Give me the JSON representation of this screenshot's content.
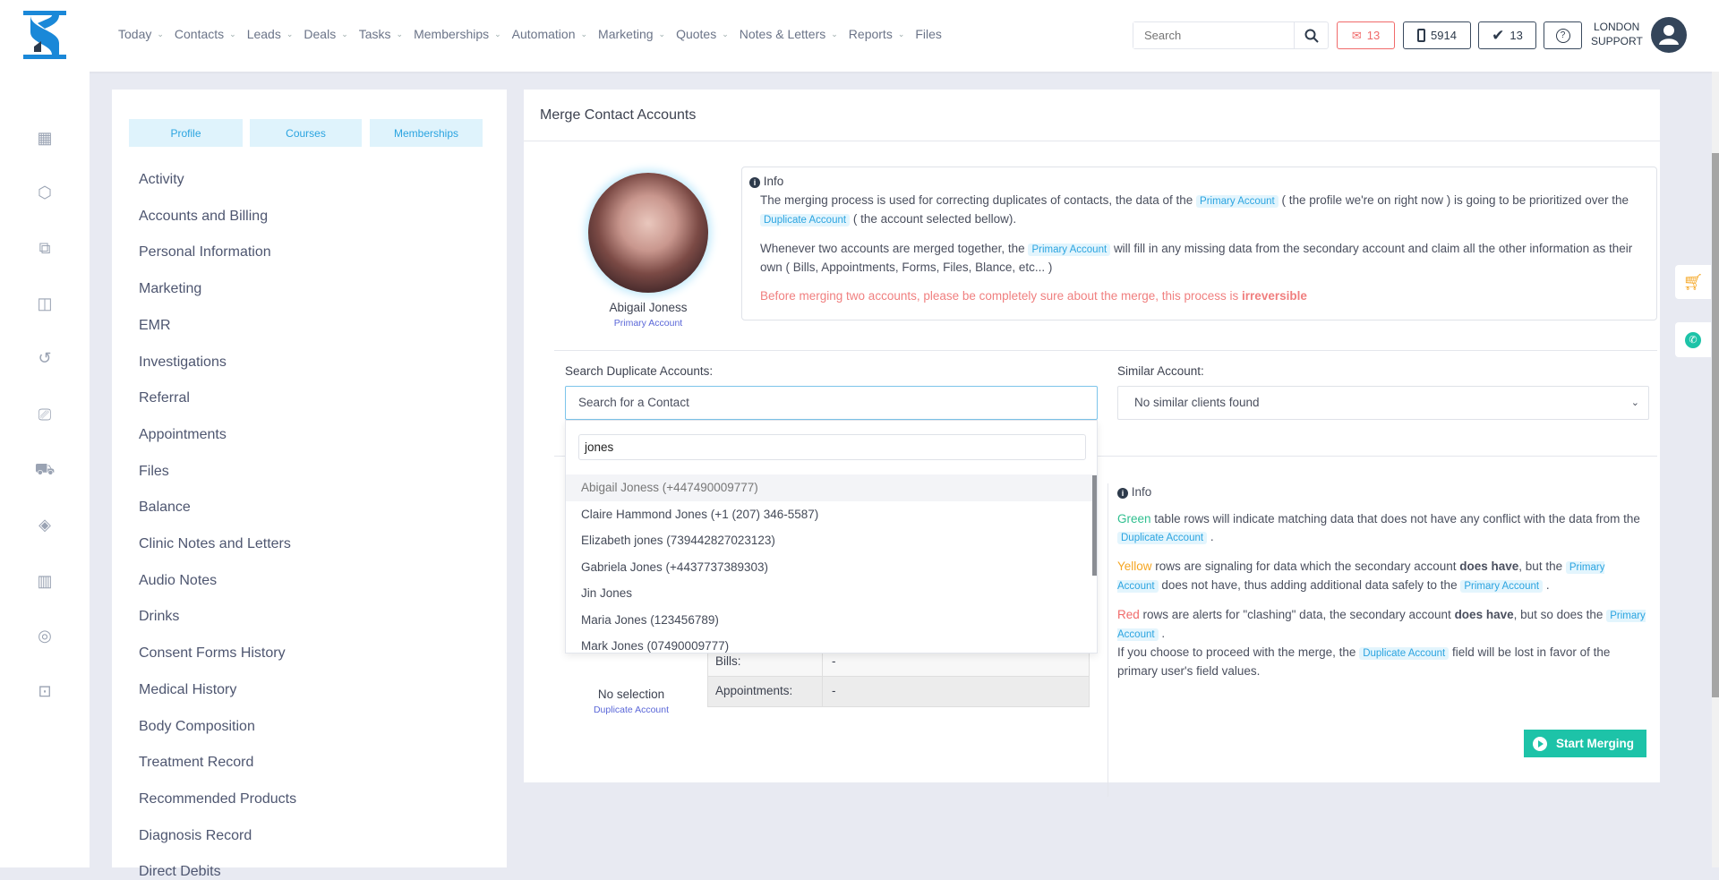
{
  "header": {
    "nav": [
      "Today",
      "Contacts",
      "Leads",
      "Deals",
      "Tasks",
      "Memberships",
      "Automation",
      "Marketing",
      "Quotes",
      "Notes & Letters",
      "Reports",
      "Files"
    ],
    "nav_has_dropdown": [
      true,
      true,
      true,
      true,
      true,
      true,
      true,
      true,
      true,
      true,
      true,
      false
    ],
    "search_placeholder": "Search",
    "mail_count": "13",
    "phone_count": "5914",
    "tasks_count": "13",
    "help": "?",
    "user_line1": "LONDON",
    "user_line2": "SUPPORT"
  },
  "rail_icons": [
    "calendar-icon",
    "box-icon",
    "copy-icon",
    "bag-icon",
    "history-icon",
    "gift-icon",
    "cart-icon",
    "tag-icon",
    "report-icon",
    "refresh-user-icon",
    "lock-icon"
  ],
  "sidebar": {
    "tabs": [
      "Profile",
      "Courses",
      "Memberships"
    ],
    "items": [
      "Activity",
      "Accounts and Billing",
      "Personal Information",
      "Marketing",
      "EMR",
      "Investigations",
      "Referral",
      "Appointments",
      "Files",
      "Balance",
      "Clinic Notes and Letters",
      "Audio Notes",
      "Drinks",
      "Consent Forms History",
      "Medical History",
      "Body Composition",
      "Treatment Record",
      "Recommended Products",
      "Diagnosis Record",
      "Direct Debits"
    ]
  },
  "merge": {
    "title": "Merge Contact Accounts",
    "primary": {
      "name": "Abigail Joness",
      "role": "Primary Account"
    },
    "info_title": "Info",
    "info1_a": "The merging process is used for correcting duplicates of contacts, the data of the",
    "info1_pill": "Primary Account",
    "info1_b": "( the profile we're on right now ) is going to be prioritized over the",
    "info1_pill2": "Duplicate Account",
    "info1_c": "( the account selected bellow).",
    "info2_a": "Whenever two accounts are merged together, the",
    "info2_pill": "Primary Account",
    "info2_b": "will fill in any missing data from the secondary account and claim all the other information as their own ( Bills, Appointments, Forms, Files, Blance, etc... )",
    "warning_a": "Before merging two accounts, please be completely sure about the merge, this process is",
    "warning_b": "irreversible",
    "search_label": "Search Duplicate Accounts:",
    "search_value": "Search for a Contact",
    "similar_label": "Similar Account:",
    "similar_value": "No similar clients found",
    "dropdown": {
      "query": "jones",
      "results": [
        "Abigail Joness (+447490009777)",
        "Claire Hammond Jones (+1 (207) 346-5587)",
        "Elizabeth jones (739442827023123)",
        "Gabriela Jones (+4437737389303)",
        "Jin Jones",
        "Maria Jones (123456789)",
        "Mark Jones (07490009777)"
      ]
    },
    "duplicate": {
      "name": "No selection",
      "role": "Duplicate Account"
    },
    "table": [
      {
        "label": "Bills:",
        "value": "-"
      },
      {
        "label": "Appointments:",
        "value": "-"
      }
    ],
    "info_right": {
      "title": "Info",
      "green": "Green",
      "green_t": "table rows will indicate matching data that does not have any conflict with the data from the",
      "pill": "Duplicate Account",
      "yellow": "Yellow",
      "yellow_t1": "rows are signaling for data which the secondary account",
      "yellow_b": "does have",
      "yellow_t2": ", but the",
      "yellow_pill": "Primary Account",
      "yellow_t3": "does not have, thus adding additional data safely to the",
      "yellow_pill2": "Primary Account",
      "red": "Red",
      "red_t1": "rows are alerts for \"clashing\" data, the secondary account",
      "red_b": "does have",
      "red_t2": ", but so does the",
      "red_pill": "Primary Account",
      "last_a": "If you choose to proceed with the merge, the",
      "last_pill": "Duplicate Account",
      "last_b": "field will be lost in favor of the primary user's field values."
    },
    "start_button": "Start Merging"
  },
  "colors": {
    "accent": "#2ba4e0",
    "teal": "#1dc3a8",
    "green": "#2fbf8f",
    "yellow": "#f5a623",
    "red": "#f06a6a",
    "dark": "#2d3a4b"
  }
}
